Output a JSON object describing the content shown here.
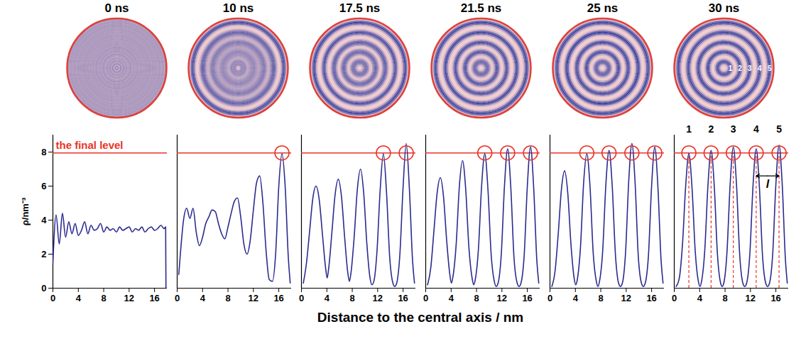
{
  "chart_data": {
    "type": "line",
    "x_label": "Distance to the central axis / nm",
    "y_label": "ρ/nm⁻³",
    "xlim": [
      0,
      18
    ],
    "xticks": [
      0,
      4,
      8,
      12,
      16
    ],
    "ylim": [
      0,
      9
    ],
    "yticks": [
      0,
      2,
      4,
      6,
      8
    ],
    "color": "#2b2b8f",
    "final_level": {
      "value": 7.95,
      "label": "the final level",
      "color": "#e8352b"
    },
    "panels": [
      {
        "title": "0 ns",
        "x": [
          0,
          0.5,
          1,
          1.5,
          2,
          2.5,
          3,
          3.5,
          4,
          4.5,
          5,
          5.5,
          6,
          6.5,
          7,
          7.5,
          8,
          8.5,
          9,
          9.5,
          10,
          10.5,
          11,
          11.5,
          12,
          12.5,
          13,
          13.5,
          14,
          14.5,
          15,
          15.5,
          16,
          16.5,
          17,
          17.5,
          17.75,
          17.8
        ],
        "values": [
          1.5,
          4.3,
          2.6,
          4.4,
          3.0,
          3.9,
          3.2,
          3.8,
          3.1,
          3.4,
          3.9,
          3.2,
          3.7,
          3.4,
          3.5,
          3.8,
          3.3,
          3.6,
          3.4,
          3.5,
          3.3,
          3.6,
          3.4,
          3.5,
          3.6,
          3.3,
          3.5,
          3.4,
          3.6,
          3.3,
          3.5,
          3.6,
          3.4,
          3.5,
          3.7,
          3.5,
          3.6,
          0
        ],
        "circled_peaks": []
      },
      {
        "title": "10 ns",
        "x": [
          0.25,
          0.5,
          1,
          1.5,
          2,
          2.5,
          3,
          3.5,
          4,
          4.5,
          5,
          5.5,
          6,
          6.5,
          7,
          7.5,
          8,
          8.5,
          9,
          9.5,
          10,
          10.5,
          11,
          11.5,
          12,
          12.5,
          13,
          13.5,
          14,
          14.5,
          15,
          15.5,
          16,
          16.5,
          17,
          17.5,
          17.8
        ],
        "values": [
          0.8,
          2.0,
          4.0,
          4.7,
          4.1,
          4.7,
          3.3,
          2.5,
          3.0,
          3.8,
          4.2,
          4.6,
          4.5,
          3.8,
          3.2,
          2.9,
          3.6,
          4.4,
          5.1,
          5.3,
          4.2,
          2.6,
          2.0,
          2.8,
          4.6,
          6.2,
          6.6,
          5.0,
          2.2,
          0.5,
          0.4,
          2.0,
          6.0,
          7.9,
          6.0,
          1.8,
          0.3
        ],
        "circled_peaks": [
          16.5
        ]
      },
      {
        "title": "17.5 ns",
        "x": [
          0.3,
          0.8,
          1.3,
          1.8,
          2.3,
          2.8,
          3.3,
          3.8,
          4.05,
          4.3,
          4.8,
          5.3,
          5.8,
          6.3,
          6.8,
          7.3,
          7.55,
          7.8,
          8.3,
          8.8,
          9.3,
          9.8,
          10.3,
          10.8,
          11.1,
          11.4,
          11.9,
          12.4,
          12.9,
          13.4,
          13.9,
          14.4,
          14.7,
          15.0,
          15.5,
          16.0,
          16.5,
          17.0,
          17.5,
          17.8
        ],
        "values": [
          0.3,
          1.5,
          3.4,
          5.3,
          6.0,
          5.2,
          3.2,
          1.2,
          0.6,
          1.2,
          3.3,
          5.5,
          6.4,
          5.4,
          3.0,
          0.9,
          0.4,
          0.9,
          3.0,
          5.8,
          7.0,
          5.6,
          2.6,
          0.6,
          0.2,
          0.4,
          2.2,
          5.8,
          7.9,
          5.6,
          1.8,
          0.3,
          0.1,
          0.3,
          2.0,
          5.9,
          8.5,
          5.8,
          1.6,
          0.3
        ],
        "circled_peaks": [
          12.9,
          16.5
        ]
      },
      {
        "title": "21.5 ns",
        "x": [
          0.3,
          0.8,
          1.3,
          1.8,
          2.3,
          2.8,
          3.3,
          3.8,
          4.05,
          4.3,
          4.8,
          5.3,
          5.8,
          6.3,
          6.8,
          7.3,
          7.55,
          7.8,
          8.3,
          8.8,
          9.3,
          9.8,
          10.3,
          10.8,
          11.1,
          11.4,
          11.9,
          12.4,
          12.9,
          13.4,
          13.9,
          14.4,
          14.7,
          15.0,
          15.5,
          16.0,
          16.5,
          17.0,
          17.5,
          17.8
        ],
        "values": [
          0.2,
          1.2,
          3.4,
          5.6,
          6.5,
          5.4,
          2.8,
          0.8,
          0.3,
          0.7,
          2.6,
          6.0,
          7.5,
          5.8,
          2.4,
          0.6,
          0.2,
          0.5,
          2.3,
          6.0,
          7.9,
          5.8,
          2.0,
          0.4,
          0.1,
          0.3,
          2.0,
          6.0,
          8.2,
          5.9,
          1.8,
          0.3,
          0.1,
          0.3,
          1.9,
          6.0,
          8.3,
          5.9,
          1.6,
          0.3
        ],
        "circled_peaks": [
          9.3,
          12.9,
          16.5
        ]
      },
      {
        "title": "25 ns",
        "x": [
          0.3,
          0.8,
          1.3,
          1.8,
          2.3,
          2.8,
          3.3,
          3.8,
          4.05,
          4.3,
          4.8,
          5.3,
          5.8,
          6.3,
          6.8,
          7.3,
          7.55,
          7.8,
          8.3,
          8.8,
          9.3,
          9.8,
          10.3,
          10.8,
          11.1,
          11.4,
          11.9,
          12.4,
          12.9,
          13.4,
          13.9,
          14.4,
          14.7,
          15.0,
          15.5,
          16.0,
          16.5,
          17.0,
          17.5,
          17.8
        ],
        "values": [
          0.1,
          1.0,
          3.2,
          5.8,
          6.9,
          5.6,
          2.6,
          0.6,
          0.2,
          0.5,
          2.4,
          6.2,
          7.9,
          6.0,
          2.1,
          0.4,
          0.1,
          0.4,
          2.2,
          6.1,
          8.1,
          6.0,
          2.0,
          0.3,
          0.1,
          0.3,
          2.1,
          6.3,
          8.5,
          6.2,
          1.9,
          0.3,
          0.1,
          0.3,
          1.9,
          6.0,
          8.3,
          5.9,
          1.6,
          0.3
        ],
        "circled_peaks": [
          5.8,
          9.3,
          12.9,
          16.5
        ]
      },
      {
        "title": "30 ns",
        "x": [
          0.3,
          0.8,
          1.3,
          1.8,
          2.3,
          2.8,
          3.3,
          3.8,
          4.05,
          4.3,
          4.8,
          5.3,
          5.8,
          6.3,
          6.8,
          7.3,
          7.55,
          7.8,
          8.3,
          8.8,
          9.3,
          9.8,
          10.3,
          10.8,
          11.1,
          11.4,
          11.9,
          12.4,
          12.9,
          13.4,
          13.9,
          14.4,
          14.7,
          15.0,
          15.5,
          16.0,
          16.5,
          17.0,
          17.5,
          17.8
        ],
        "values": [
          0.1,
          0.6,
          2.6,
          6.0,
          7.9,
          5.9,
          2.2,
          0.4,
          0.1,
          0.4,
          2.2,
          6.0,
          8.1,
          6.0,
          2.0,
          0.3,
          0.1,
          0.3,
          2.1,
          6.1,
          8.3,
          6.1,
          2.0,
          0.3,
          0.1,
          0.3,
          2.0,
          6.0,
          8.2,
          6.0,
          1.9,
          0.3,
          0.1,
          0.3,
          2.0,
          6.1,
          8.4,
          6.1,
          1.7,
          0.3
        ],
        "circled_peaks": [
          2.3,
          5.8,
          9.3,
          12.9,
          16.5
        ]
      }
    ],
    "peak_positions": [
      2.3,
      5.8,
      9.3,
      12.9,
      16.5
    ],
    "peak_labels": [
      "1",
      "2",
      "3",
      "4",
      "5"
    ],
    "spacing": {
      "label": "l",
      "from": 12.9,
      "to": 16.5,
      "y": 6.6
    }
  }
}
